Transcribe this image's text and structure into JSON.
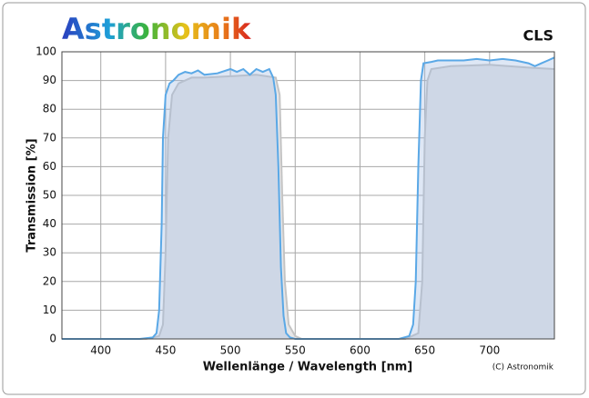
{
  "chart_data": {
    "type": "line",
    "logo": "Astronomik",
    "title": "CLS",
    "credit": "(C) Astronomik",
    "xlabel": "Wellenlänge / Wavelength [nm]",
    "ylabel": "Transmission [%]",
    "xlim": [
      370,
      750
    ],
    "ylim": [
      0,
      100
    ],
    "xticks": [
      400,
      450,
      500,
      550,
      600,
      650,
      700
    ],
    "yticks": [
      0,
      10,
      20,
      30,
      40,
      50,
      60,
      70,
      80,
      90,
      100
    ],
    "grid": true,
    "series": [
      {
        "color": "#c4c4c4",
        "fill": "#e6e6e8",
        "x": [
          370,
          435,
          445,
          448,
          450,
          452,
          455,
          460,
          470,
          480,
          500,
          520,
          535,
          538,
          540,
          542,
          545,
          550,
          555,
          635,
          645,
          648,
          650,
          652,
          655,
          670,
          700,
          730,
          750
        ],
        "values": [
          0,
          0,
          1,
          5,
          30,
          70,
          85,
          89,
          91,
          91,
          91.5,
          92,
          91,
          85,
          50,
          20,
          5,
          1,
          0,
          0,
          2,
          20,
          70,
          90,
          94,
          95,
          95.5,
          94.5,
          94
        ]
      },
      {
        "color": "#5aa8e6",
        "fill": "rgba(160,185,225,0.35)",
        "x": [
          370,
          430,
          440,
          443,
          445,
          447,
          448,
          450,
          453,
          456,
          460,
          465,
          470,
          475,
          480,
          490,
          500,
          505,
          510,
          515,
          520,
          525,
          530,
          533,
          535,
          537,
          539,
          541,
          543,
          546,
          550,
          630,
          638,
          641,
          643,
          645,
          647,
          649,
          655,
          660,
          670,
          680,
          690,
          700,
          710,
          720,
          730,
          735,
          740,
          745,
          750
        ],
        "values": [
          0,
          0,
          0.5,
          2,
          10,
          40,
          70,
          85,
          89,
          90,
          92,
          93,
          92.5,
          93.5,
          92,
          92.5,
          94,
          93,
          94,
          92,
          94,
          93,
          94,
          91,
          85,
          60,
          25,
          8,
          2,
          0.5,
          0,
          0,
          1,
          5,
          20,
          60,
          90,
          96,
          96.5,
          97,
          97,
          97,
          97.5,
          97,
          97.5,
          97,
          96,
          95,
          96,
          97,
          98
        ]
      }
    ]
  }
}
